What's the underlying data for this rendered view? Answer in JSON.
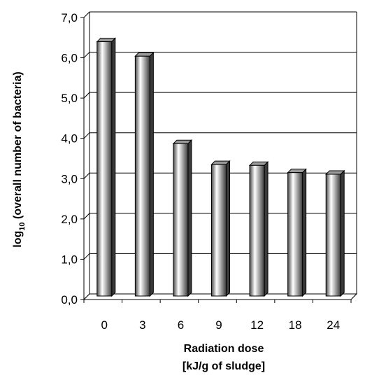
{
  "chart_data": {
    "type": "bar",
    "categories": [
      "0",
      "3",
      "6",
      "9",
      "12",
      "18",
      "24"
    ],
    "values": [
      6.33,
      5.97,
      3.8,
      3.28,
      3.26,
      3.08,
      3.04
    ],
    "y_tick_labels": [
      "0,0",
      "1,0",
      "2,0",
      "3,0",
      "4,0",
      "5,0",
      "6,0",
      "7,0"
    ],
    "ylim": [
      0,
      7
    ],
    "grid": true,
    "legend": "none",
    "ylabel": {
      "prefix": "log",
      "subscript": "10",
      "suffix": " (overall number of bacteria)"
    },
    "xlabel": {
      "line1": "Radiation dose",
      "line2": "[kJ/g of sludge]"
    },
    "colors": {
      "bar_dark": "#3a3a3a",
      "bar_light": "#ffffff",
      "bar_top": "#9a9a9a",
      "grid": "#000000",
      "side_wall": "#d9d9d9"
    }
  }
}
